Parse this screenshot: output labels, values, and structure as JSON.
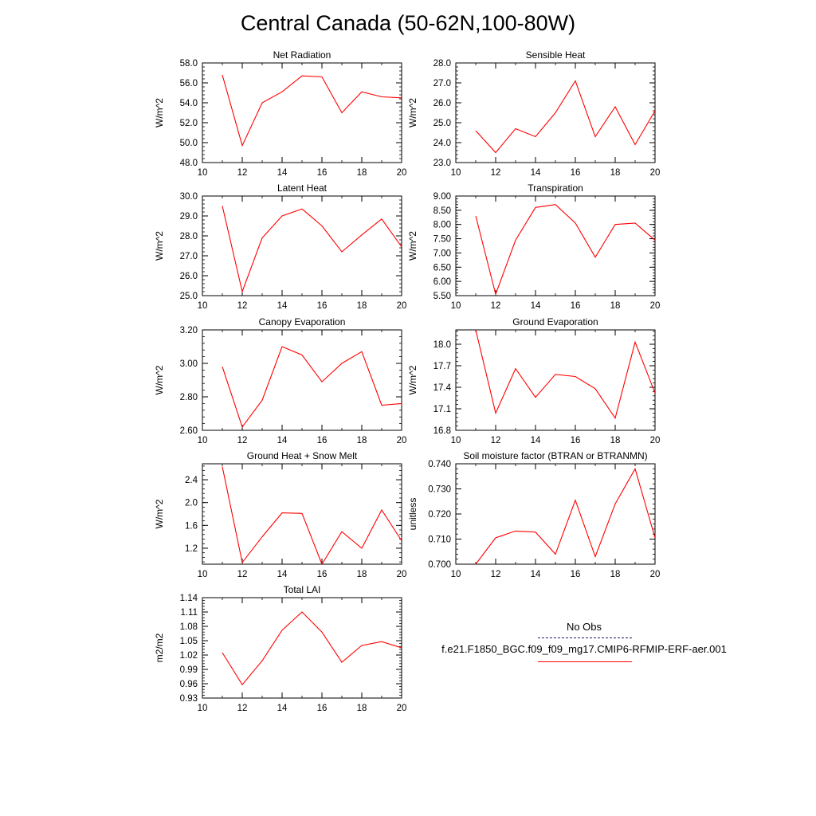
{
  "title": "Central Canada (50-62N,100-80W)",
  "legend": {
    "obs_label": "No Obs",
    "obs_color": "#1a1a6e",
    "model_label": "f.e21.F1850_BGC.f09_f09_mg17.CMIP6-RFMIP-ERF-aer.001",
    "model_color": "#ff0000"
  },
  "chart_data": [
    {
      "type": "line",
      "title": "Net Radiation",
      "ylabel": "W/m^2",
      "xlim": [
        10,
        20
      ],
      "ylim": [
        48.0,
        58.0
      ],
      "xticks": [
        "10",
        "12",
        "14",
        "16",
        "18",
        "20"
      ],
      "yticks": [
        "48.0",
        "50.0",
        "52.0",
        "54.0",
        "56.0",
        "58.0"
      ],
      "series": [
        {
          "x": [
            11,
            12,
            13,
            14,
            15,
            16,
            17,
            18,
            19,
            20
          ],
          "values": [
            56.8,
            49.7,
            54.0,
            55.1,
            56.7,
            56.6,
            53.0,
            55.1,
            54.6,
            54.5
          ]
        }
      ]
    },
    {
      "type": "line",
      "title": "Sensible Heat",
      "ylabel": "W/m^2",
      "xlim": [
        10,
        20
      ],
      "ylim": [
        23.0,
        28.0
      ],
      "xticks": [
        "10",
        "12",
        "14",
        "16",
        "18",
        "20"
      ],
      "yticks": [
        "23.0",
        "24.0",
        "25.0",
        "26.0",
        "27.0",
        "28.0"
      ],
      "series": [
        {
          "x": [
            11,
            12,
            13,
            14,
            15,
            16,
            17,
            18,
            19,
            20
          ],
          "values": [
            24.6,
            23.5,
            24.7,
            24.3,
            25.5,
            27.1,
            24.3,
            25.8,
            23.9,
            25.6
          ]
        }
      ]
    },
    {
      "type": "line",
      "title": "Latent Heat",
      "ylabel": "W/m^2",
      "xlim": [
        10,
        20
      ],
      "ylim": [
        25.0,
        30.0
      ],
      "xticks": [
        "10",
        "12",
        "14",
        "16",
        "18",
        "20"
      ],
      "yticks": [
        "25.0",
        "26.0",
        "27.0",
        "28.0",
        "29.0",
        "30.0"
      ],
      "series": [
        {
          "x": [
            11,
            12,
            13,
            14,
            15,
            16,
            17,
            18,
            19,
            20
          ],
          "values": [
            29.5,
            25.2,
            27.9,
            29.0,
            29.35,
            28.5,
            27.2,
            28.05,
            28.85,
            27.45
          ]
        }
      ]
    },
    {
      "type": "line",
      "title": "Transpiration",
      "ylabel": "W/m^2",
      "xlim": [
        10,
        20
      ],
      "ylim": [
        5.5,
        9.0
      ],
      "xticks": [
        "10",
        "12",
        "14",
        "16",
        "18",
        "20"
      ],
      "yticks": [
        "5.50",
        "6.00",
        "6.50",
        "7.00",
        "7.50",
        "8.00",
        "8.50",
        "9.00"
      ],
      "series": [
        {
          "x": [
            11,
            12,
            13,
            14,
            15,
            16,
            17,
            18,
            19,
            20
          ],
          "values": [
            8.3,
            5.55,
            7.45,
            8.6,
            8.7,
            8.05,
            6.85,
            8.0,
            8.05,
            7.45
          ]
        }
      ]
    },
    {
      "type": "line",
      "title": "Canopy Evaporation",
      "ylabel": "W/m^2",
      "xlim": [
        10,
        20
      ],
      "ylim": [
        2.6,
        3.2
      ],
      "xticks": [
        "10",
        "12",
        "14",
        "16",
        "18",
        "20"
      ],
      "yticks": [
        "2.60",
        "2.80",
        "3.00",
        "3.20"
      ],
      "series": [
        {
          "x": [
            11,
            12,
            13,
            14,
            15,
            16,
            17,
            18,
            19,
            20
          ],
          "values": [
            2.98,
            2.62,
            2.78,
            3.1,
            3.05,
            2.89,
            3.0,
            3.07,
            2.75,
            2.76
          ]
        }
      ]
    },
    {
      "type": "line",
      "title": "Ground Evaporation",
      "ylabel": "W/m^2",
      "xlim": [
        10,
        20
      ],
      "ylim": [
        16.8,
        18.2
      ],
      "xticks": [
        "10",
        "12",
        "14",
        "16",
        "18",
        "20"
      ],
      "yticks": [
        "16.8",
        "17.1",
        "17.4",
        "17.7",
        "18.0"
      ],
      "series": [
        {
          "x": [
            11,
            12,
            13,
            14,
            15,
            16,
            17,
            18,
            19,
            20
          ],
          "values": [
            18.2,
            17.04,
            17.66,
            17.26,
            17.58,
            17.55,
            17.38,
            16.97,
            18.03,
            17.32
          ]
        }
      ]
    },
    {
      "type": "line",
      "title": "Ground Heat + Snow Melt",
      "ylabel": "W/m^2",
      "xlim": [
        10,
        20
      ],
      "ylim": [
        0.92,
        2.68
      ],
      "xticks": [
        "10",
        "12",
        "14",
        "16",
        "18",
        "20"
      ],
      "yticks": [
        "1.2",
        "1.6",
        "2.0",
        "2.4"
      ],
      "series": [
        {
          "x": [
            11,
            12,
            13,
            14,
            15,
            16,
            17,
            18,
            19,
            20
          ],
          "values": [
            2.63,
            0.95,
            1.4,
            1.82,
            1.81,
            0.92,
            1.49,
            1.2,
            1.87,
            1.33
          ]
        }
      ]
    },
    {
      "type": "line",
      "title": "Soil moisture factor (BTRAN or BTRANMN)",
      "ylabel": "unitless",
      "xlim": [
        10,
        20
      ],
      "ylim": [
        0.7,
        0.74
      ],
      "xticks": [
        "10",
        "12",
        "14",
        "16",
        "18",
        "20"
      ],
      "yticks": [
        "0.700",
        "0.710",
        "0.720",
        "0.730",
        "0.740"
      ],
      "series": [
        {
          "x": [
            11,
            12,
            13,
            14,
            15,
            16,
            17,
            18,
            19,
            20
          ],
          "values": [
            0.7,
            0.7105,
            0.7132,
            0.7128,
            0.704,
            0.7255,
            0.703,
            0.724,
            0.738,
            0.7105
          ]
        }
      ]
    },
    {
      "type": "line",
      "title": "Total LAI",
      "ylabel": "m2/m2",
      "xlim": [
        10,
        20
      ],
      "ylim": [
        0.93,
        1.14
      ],
      "xticks": [
        "10",
        "12",
        "14",
        "16",
        "18",
        "20"
      ],
      "yticks": [
        "0.93",
        "0.96",
        "0.99",
        "1.02",
        "1.05",
        "1.08",
        "1.11",
        "1.14"
      ],
      "series": [
        {
          "x": [
            11,
            12,
            13,
            14,
            15,
            16,
            17,
            18,
            19,
            20
          ],
          "values": [
            1.025,
            0.958,
            1.008,
            1.072,
            1.11,
            1.068,
            1.005,
            1.04,
            1.048,
            1.035
          ]
        }
      ]
    }
  ]
}
